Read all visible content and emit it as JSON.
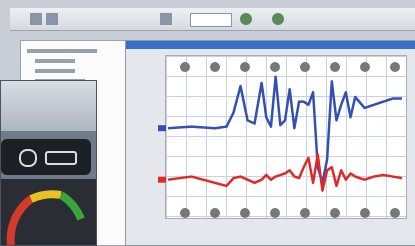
{
  "chart_data": {
    "type": "line",
    "x": [
      0,
      10,
      20,
      25,
      28,
      31,
      34,
      37,
      40,
      42,
      44,
      46,
      48,
      50,
      52,
      54,
      56,
      58,
      60,
      62,
      64,
      66,
      68,
      70,
      72,
      74,
      76,
      78,
      80,
      84,
      88,
      92,
      96,
      100
    ],
    "xlim": [
      0,
      100
    ],
    "ylim": [
      0,
      100
    ],
    "series": [
      {
        "color": "#3550b5",
        "values": [
          55,
          56,
          55,
          56,
          65,
          82,
          60,
          58,
          84,
          62,
          56,
          88,
          57,
          60,
          80,
          55,
          72,
          72,
          70,
          78,
          30,
          20,
          35,
          85,
          60,
          70,
          78,
          62,
          75,
          68,
          70,
          72,
          74,
          74
        ]
      },
      {
        "color": "#e02a2a",
        "values": [
          22,
          24,
          20,
          18,
          23,
          24,
          22,
          20,
          22,
          25,
          22,
          24,
          25,
          26,
          28,
          24,
          23,
          30,
          36,
          20,
          38,
          15,
          28,
          30,
          18,
          28,
          22,
          26,
          24,
          22,
          24,
          25,
          24,
          23
        ]
      }
    ]
  }
}
